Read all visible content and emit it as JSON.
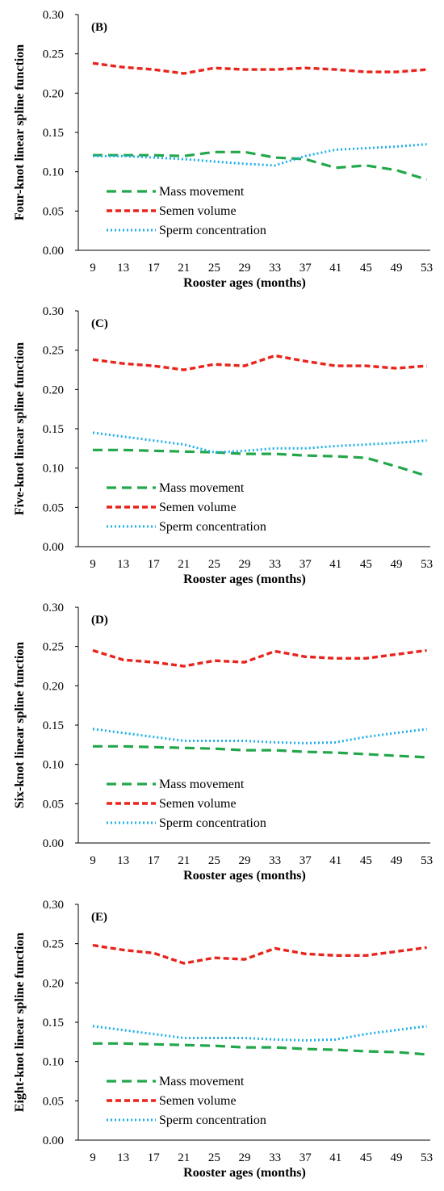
{
  "chart_data": [
    {
      "type": "line",
      "panel_label": "(B)",
      "ylabel": "Four-knot linear spline function",
      "xlabel": "Rooster ages (months)",
      "ylim": [
        0,
        0.3
      ],
      "yticks": [
        "0.00",
        "0.05",
        "0.10",
        "0.15",
        "0.20",
        "0.25",
        "0.30"
      ],
      "categories": [
        "9",
        "13",
        "17",
        "21",
        "25",
        "29",
        "33",
        "37",
        "41",
        "45",
        "49",
        "53"
      ],
      "series": [
        {
          "name": "Mass movement",
          "color": "#22a74a",
          "style": "dash",
          "values": [
            0.121,
            0.121,
            0.121,
            0.12,
            0.125,
            0.125,
            0.118,
            0.116,
            0.105,
            0.108,
            0.102,
            0.09
          ]
        },
        {
          "name": "Semen volume",
          "color": "#e8241c",
          "style": "shortdash",
          "values": [
            0.238,
            0.233,
            0.23,
            0.225,
            0.232,
            0.23,
            0.23,
            0.232,
            0.23,
            0.227,
            0.227,
            0.23
          ]
        },
        {
          "name": "Sperm concentration",
          "color": "#1fb0e8",
          "style": "dot",
          "values": [
            0.12,
            0.12,
            0.118,
            0.116,
            0.113,
            0.11,
            0.108,
            0.12,
            0.128,
            0.13,
            0.132,
            0.135
          ]
        }
      ]
    },
    {
      "type": "line",
      "panel_label": "(C)",
      "ylabel": "Five-knot linear spline function",
      "xlabel": "Rooster ages (months)",
      "ylim": [
        0,
        0.3
      ],
      "yticks": [
        "0.00",
        "0.05",
        "0.10",
        "0.15",
        "0.20",
        "0.25",
        "0.30"
      ],
      "categories": [
        "9",
        "13",
        "17",
        "21",
        "25",
        "29",
        "33",
        "37",
        "41",
        "45",
        "49",
        "53"
      ],
      "series": [
        {
          "name": "Mass movement",
          "color": "#22a74a",
          "style": "dash",
          "values": [
            0.123,
            0.123,
            0.122,
            0.121,
            0.12,
            0.118,
            0.118,
            0.116,
            0.115,
            0.113,
            0.102,
            0.09
          ]
        },
        {
          "name": "Semen volume",
          "color": "#e8241c",
          "style": "shortdash",
          "values": [
            0.238,
            0.233,
            0.23,
            0.225,
            0.232,
            0.23,
            0.243,
            0.236,
            0.23,
            0.23,
            0.227,
            0.23
          ]
        },
        {
          "name": "Sperm concentration",
          "color": "#1fb0e8",
          "style": "dot",
          "values": [
            0.145,
            0.14,
            0.135,
            0.13,
            0.12,
            0.122,
            0.125,
            0.125,
            0.128,
            0.13,
            0.132,
            0.135
          ]
        }
      ]
    },
    {
      "type": "line",
      "panel_label": "(D)",
      "ylabel": "Six-knot linear spline function",
      "xlabel": "Rooster ages (months)",
      "ylim": [
        0,
        0.3
      ],
      "yticks": [
        "0.00",
        "0.05",
        "0.10",
        "0.15",
        "0.20",
        "0.25",
        "0.30"
      ],
      "categories": [
        "9",
        "13",
        "17",
        "21",
        "25",
        "29",
        "33",
        "37",
        "41",
        "45",
        "49",
        "53"
      ],
      "series": [
        {
          "name": "Mass movement",
          "color": "#22a74a",
          "style": "dash",
          "values": [
            0.123,
            0.123,
            0.122,
            0.121,
            0.12,
            0.118,
            0.118,
            0.116,
            0.115,
            0.113,
            0.111,
            0.109
          ]
        },
        {
          "name": "Semen volume",
          "color": "#e8241c",
          "style": "shortdash",
          "values": [
            0.245,
            0.233,
            0.23,
            0.225,
            0.232,
            0.23,
            0.244,
            0.237,
            0.235,
            0.235,
            0.24,
            0.245
          ]
        },
        {
          "name": "Sperm concentration",
          "color": "#1fb0e8",
          "style": "dot",
          "values": [
            0.145,
            0.14,
            0.135,
            0.13,
            0.13,
            0.13,
            0.128,
            0.127,
            0.128,
            0.135,
            0.14,
            0.145
          ]
        }
      ]
    },
    {
      "type": "line",
      "panel_label": "(E)",
      "ylabel": "Eight-knot linear spline function",
      "xlabel": "Rooster ages (months)",
      "ylim": [
        0,
        0.3
      ],
      "yticks": [
        "0.00",
        "0.05",
        "0.10",
        "0.15",
        "0.20",
        "0.25",
        "0.30"
      ],
      "categories": [
        "9",
        "13",
        "17",
        "21",
        "25",
        "29",
        "33",
        "37",
        "41",
        "45",
        "49",
        "53"
      ],
      "series": [
        {
          "name": "Mass movement",
          "color": "#22a74a",
          "style": "dash",
          "values": [
            0.123,
            0.123,
            0.122,
            0.121,
            0.12,
            0.118,
            0.118,
            0.116,
            0.115,
            0.113,
            0.112,
            0.109
          ]
        },
        {
          "name": "Semen volume",
          "color": "#e8241c",
          "style": "shortdash",
          "values": [
            0.248,
            0.242,
            0.238,
            0.225,
            0.232,
            0.23,
            0.244,
            0.237,
            0.235,
            0.235,
            0.24,
            0.245
          ]
        },
        {
          "name": "Sperm concentration",
          "color": "#1fb0e8",
          "style": "dot",
          "values": [
            0.145,
            0.14,
            0.135,
            0.13,
            0.13,
            0.13,
            0.128,
            0.127,
            0.128,
            0.135,
            0.14,
            0.145
          ]
        }
      ]
    }
  ]
}
